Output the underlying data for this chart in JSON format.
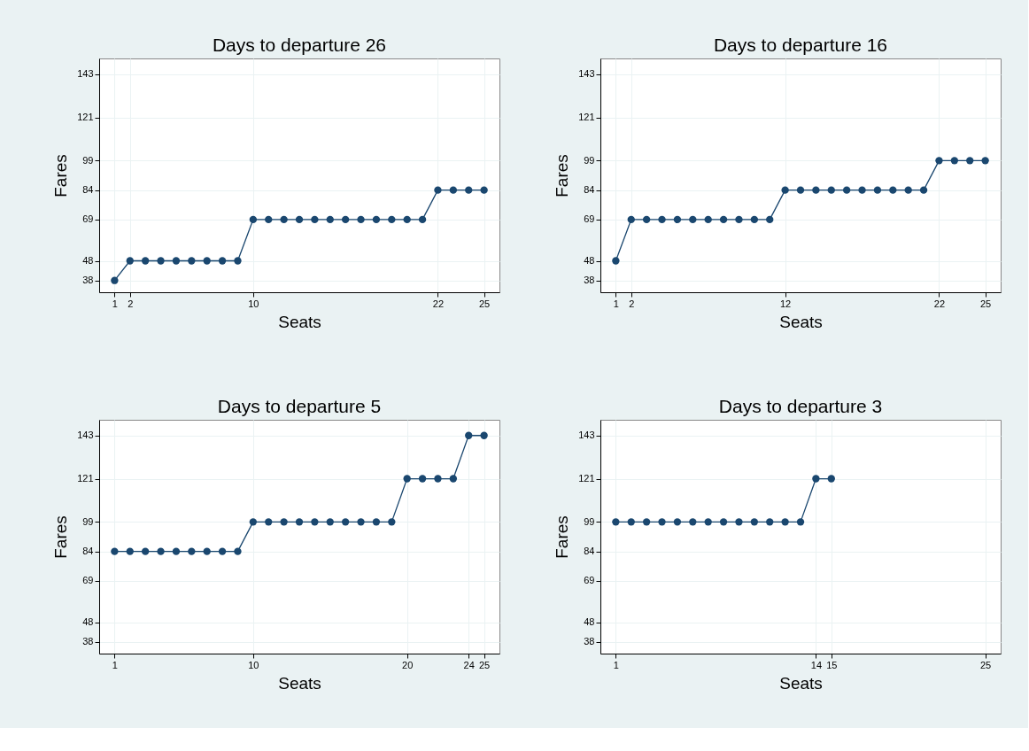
{
  "chart_data": [
    {
      "type": "line",
      "title": "Days to departure 26",
      "xlabel": "Seats",
      "ylabel": "Fares",
      "marker": "circle",
      "line_style": "solid",
      "grid": true,
      "xlim": [
        0,
        26
      ],
      "ylim": [
        32,
        151
      ],
      "xticks": [
        1,
        2,
        10,
        22,
        25
      ],
      "yticks": [
        38,
        48,
        69,
        84,
        99,
        121,
        143
      ],
      "series": [
        {
          "color": "#1a476f",
          "x": [
            1,
            2,
            3,
            4,
            5,
            6,
            7,
            8,
            9,
            10,
            11,
            12,
            13,
            14,
            15,
            16,
            17,
            18,
            19,
            20,
            21,
            22,
            23,
            24,
            25
          ],
          "values": [
            38,
            48,
            48,
            48,
            48,
            48,
            48,
            48,
            48,
            69,
            69,
            69,
            69,
            69,
            69,
            69,
            69,
            69,
            69,
            69,
            69,
            84,
            84,
            84,
            84
          ]
        }
      ]
    },
    {
      "type": "line",
      "title": "Days to departure 16",
      "xlabel": "Seats",
      "ylabel": "Fares",
      "marker": "circle",
      "line_style": "solid",
      "grid": true,
      "xlim": [
        0,
        26
      ],
      "ylim": [
        32,
        151
      ],
      "xticks": [
        1,
        2,
        12,
        22,
        25
      ],
      "yticks": [
        38,
        48,
        69,
        84,
        99,
        121,
        143
      ],
      "series": [
        {
          "color": "#1a476f",
          "x": [
            1,
            2,
            3,
            4,
            5,
            6,
            7,
            8,
            9,
            10,
            11,
            12,
            13,
            14,
            15,
            16,
            17,
            18,
            19,
            20,
            21,
            22,
            23,
            24,
            25
          ],
          "values": [
            48,
            69,
            69,
            69,
            69,
            69,
            69,
            69,
            69,
            69,
            69,
            84,
            84,
            84,
            84,
            84,
            84,
            84,
            84,
            84,
            84,
            99,
            99,
            99,
            99
          ]
        }
      ]
    },
    {
      "type": "line",
      "title": "Days to departure 5",
      "xlabel": "Seats",
      "ylabel": "Fares",
      "marker": "circle",
      "line_style": "solid",
      "grid": true,
      "xlim": [
        0,
        26
      ],
      "ylim": [
        32,
        151
      ],
      "xticks": [
        1,
        10,
        20,
        24,
        25
      ],
      "yticks": [
        38,
        48,
        69,
        84,
        99,
        121,
        143
      ],
      "series": [
        {
          "color": "#1a476f",
          "x": [
            1,
            2,
            3,
            4,
            5,
            6,
            7,
            8,
            9,
            10,
            11,
            12,
            13,
            14,
            15,
            16,
            17,
            18,
            19,
            20,
            21,
            22,
            23,
            24,
            25
          ],
          "values": [
            84,
            84,
            84,
            84,
            84,
            84,
            84,
            84,
            84,
            99,
            99,
            99,
            99,
            99,
            99,
            99,
            99,
            99,
            99,
            121,
            121,
            121,
            121,
            143,
            143
          ]
        }
      ]
    },
    {
      "type": "line",
      "title": "Days to departure 3",
      "xlabel": "Seats",
      "ylabel": "Fares",
      "marker": "circle",
      "line_style": "solid",
      "grid": true,
      "xlim": [
        0,
        26
      ],
      "ylim": [
        32,
        151
      ],
      "xticks": [
        1,
        14,
        15,
        25
      ],
      "yticks": [
        38,
        48,
        69,
        84,
        99,
        121,
        143
      ],
      "series": [
        {
          "color": "#1a476f",
          "x": [
            1,
            2,
            3,
            4,
            5,
            6,
            7,
            8,
            9,
            10,
            11,
            12,
            13,
            14,
            15
          ],
          "values": [
            99,
            99,
            99,
            99,
            99,
            99,
            99,
            99,
            99,
            99,
            99,
            99,
            99,
            121,
            121
          ]
        }
      ]
    }
  ]
}
